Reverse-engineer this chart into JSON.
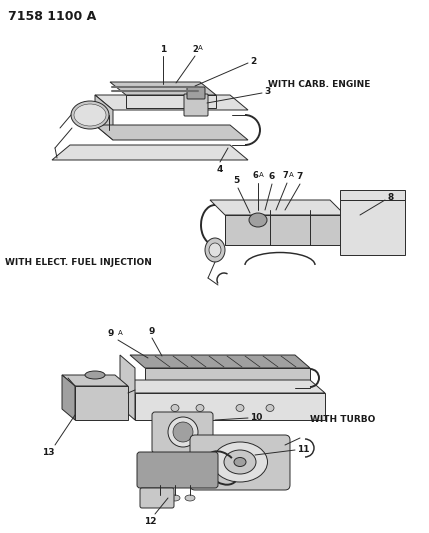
{
  "title": "7158 1100 A",
  "bg_color": "#ffffff",
  "text_color": "#1a1a1a",
  "diagram1_label": "WITH CARB. ENGINE",
  "diagram2_label": "WITH ELECT. FUEL INJECTION",
  "diagram3_label": "WITH TURBO",
  "font_size_title": 9,
  "font_size_label": 6.5,
  "font_size_part": 6.5,
  "line_color": "#2a2a2a",
  "lw": 0.7,
  "fill_light": "#e0e0e0",
  "fill_mid": "#c8c8c8",
  "fill_dark": "#a0a0a0",
  "fill_vdark": "#707070"
}
